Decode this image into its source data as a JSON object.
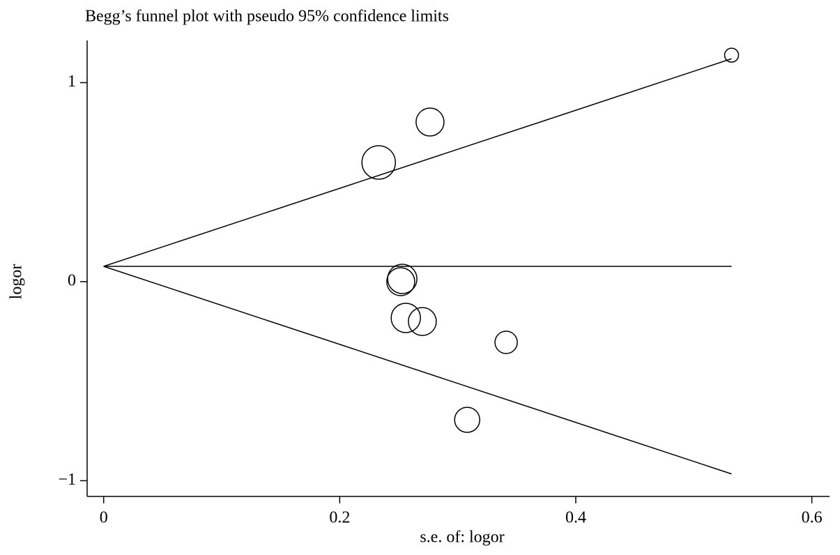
{
  "chart_data": {
    "type": "scatter",
    "title": "Begg’s funnel plot with pseudo 95% confidence limits",
    "x_label": "s.e. of: logor",
    "y_label": "logor",
    "xlim": [
      -0.014,
      0.615
    ],
    "ylim": [
      -1.079,
      1.212
    ],
    "xticks": [
      0,
      0.2,
      0.4,
      0.6
    ],
    "yticks": [
      1,
      0,
      {
        "value": -1,
        "label": "−1"
      }
    ],
    "color": "#000000",
    "x": [
      0.532,
      0.2765,
      0.233,
      0.253,
      0.2517,
      0.256,
      0.27,
      0.341,
      0.308
    ],
    "values": [
      1.138,
      0.802,
      0.599,
      0.014,
      0,
      -0.182,
      -0.2,
      -0.305,
      -0.694
    ],
    "sizes": [
      10,
      20,
      24,
      21,
      20,
      21,
      20,
      16,
      18
    ],
    "lines": [
      {
        "x": [
          0,
          0.532
        ],
        "values": [
          0.077,
          0.077
        ]
      },
      {
        "x": [
          0,
          0.532
        ],
        "values": [
          0.077,
          1.12
        ]
      },
      {
        "x": [
          0,
          0.532
        ],
        "values": [
          0.077,
          -0.966
        ]
      }
    ]
  }
}
